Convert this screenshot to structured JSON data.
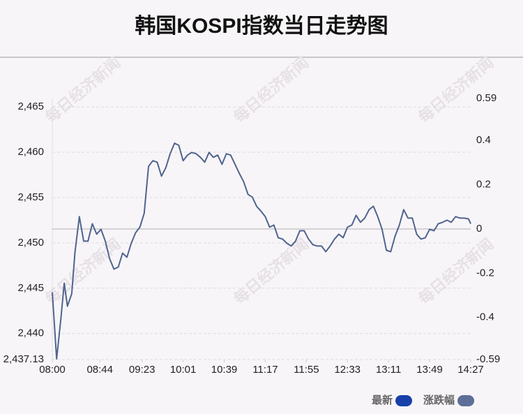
{
  "chart_data": {
    "type": "line",
    "title": "韩国KOSPI指数当日走势图",
    "watermark": "每日经济新闻",
    "x": [
      0,
      4,
      8,
      11,
      14,
      18,
      21,
      25,
      29,
      33,
      37,
      41,
      45,
      49,
      53,
      57,
      61,
      65,
      69,
      73,
      77,
      81,
      85,
      89,
      93,
      97,
      101,
      105,
      109,
      113,
      117,
      121,
      125,
      129,
      133,
      137,
      141,
      145,
      149,
      153,
      157,
      161,
      165,
      169,
      173,
      177,
      181,
      185,
      189,
      193,
      197,
      201,
      205,
      209,
      213,
      217,
      221,
      225,
      229,
      233,
      237,
      241,
      245,
      249,
      253,
      257,
      261,
      265,
      269,
      273,
      277,
      281,
      285,
      289,
      293,
      297,
      301,
      305,
      309,
      313,
      317,
      321,
      325,
      329,
      333,
      337,
      341,
      345,
      349,
      353,
      357,
      361,
      365,
      369,
      373,
      377,
      381,
      385,
      387
    ],
    "series": [
      {
        "name": "最新",
        "color": "#50648f",
        "values": [
          2444.55,
          2437.2,
          2441.7,
          2445.56,
          2443.01,
          2444.4,
          2449.03,
          2452.89,
          2450.19,
          2450.19,
          2452.11,
          2450.96,
          2451.5,
          2450.19,
          2448.26,
          2447.1,
          2447.33,
          2448.87,
          2448.41,
          2449.95,
          2451.11,
          2451.73,
          2453.27,
          2458.44,
          2459.06,
          2458.9,
          2457.36,
          2458.29,
          2459.83,
          2460.99,
          2460.76,
          2459.06,
          2459.68,
          2459.98,
          2459.83,
          2459.44,
          2458.9,
          2459.98,
          2459.44,
          2459.68,
          2458.67,
          2459.83,
          2459.68,
          2458.67,
          2457.67,
          2456.74,
          2455.36,
          2455.05,
          2454.04,
          2453.5,
          2452.89,
          2451.73,
          2451.96,
          2450.57,
          2450.42,
          2449.95,
          2449.65,
          2450.19,
          2451.34,
          2451.34,
          2450.42,
          2449.8,
          2449.65,
          2449.65,
          2449.03,
          2449.65,
          2450.42,
          2450.96,
          2450.57,
          2451.73,
          2451.96,
          2453.04,
          2452.27,
          2452.73,
          2453.66,
          2454.04,
          2452.89,
          2451.5,
          2449.18,
          2449.03,
          2450.73,
          2451.96,
          2453.66,
          2452.73,
          2452.73,
          2450.96,
          2450.42,
          2450.57,
          2451.5,
          2451.34,
          2452.11,
          2452.27,
          2452.5,
          2452.27,
          2452.89,
          2452.73,
          2452.73,
          2452.65,
          2452.11
        ]
      }
    ],
    "legend": [
      {
        "name": "最新",
        "color": "#1640a8"
      },
      {
        "name": "涨跌幅",
        "color": "#5d6f99"
      }
    ],
    "xlim": [
      0,
      387
    ],
    "xticks": [
      {
        "value": 0,
        "label": "08:00"
      },
      {
        "value": 44,
        "label": "08:44"
      },
      {
        "value": 83,
        "label": "09:23"
      },
      {
        "value": 121,
        "label": "10:01"
      },
      {
        "value": 159,
        "label": "10:39"
      },
      {
        "value": 197,
        "label": "11:17"
      },
      {
        "value": 235,
        "label": "11:55"
      },
      {
        "value": 273,
        "label": "12:33"
      },
      {
        "value": 311,
        "label": "13:11"
      },
      {
        "value": 349,
        "label": "13:49"
      },
      {
        "value": 387,
        "label": "14:27"
      }
    ],
    "ylim": [
      2437.13,
      2465.93
    ],
    "yticks": [
      {
        "value": 2437.13,
        "label": "2,437.13"
      },
      {
        "value": 2440,
        "label": "2,440"
      },
      {
        "value": 2445,
        "label": "2,445"
      },
      {
        "value": 2450,
        "label": "2,450"
      },
      {
        "value": 2455,
        "label": "2,455"
      },
      {
        "value": 2460,
        "label": "2,460"
      },
      {
        "value": 2465,
        "label": "2,465"
      }
    ],
    "y2lim": [
      -0.59,
      0.59
    ],
    "y2ticks": [
      -0.59,
      -0.4,
      -0.2,
      0,
      0.2,
      0.4,
      0.59
    ],
    "grid": true
  }
}
